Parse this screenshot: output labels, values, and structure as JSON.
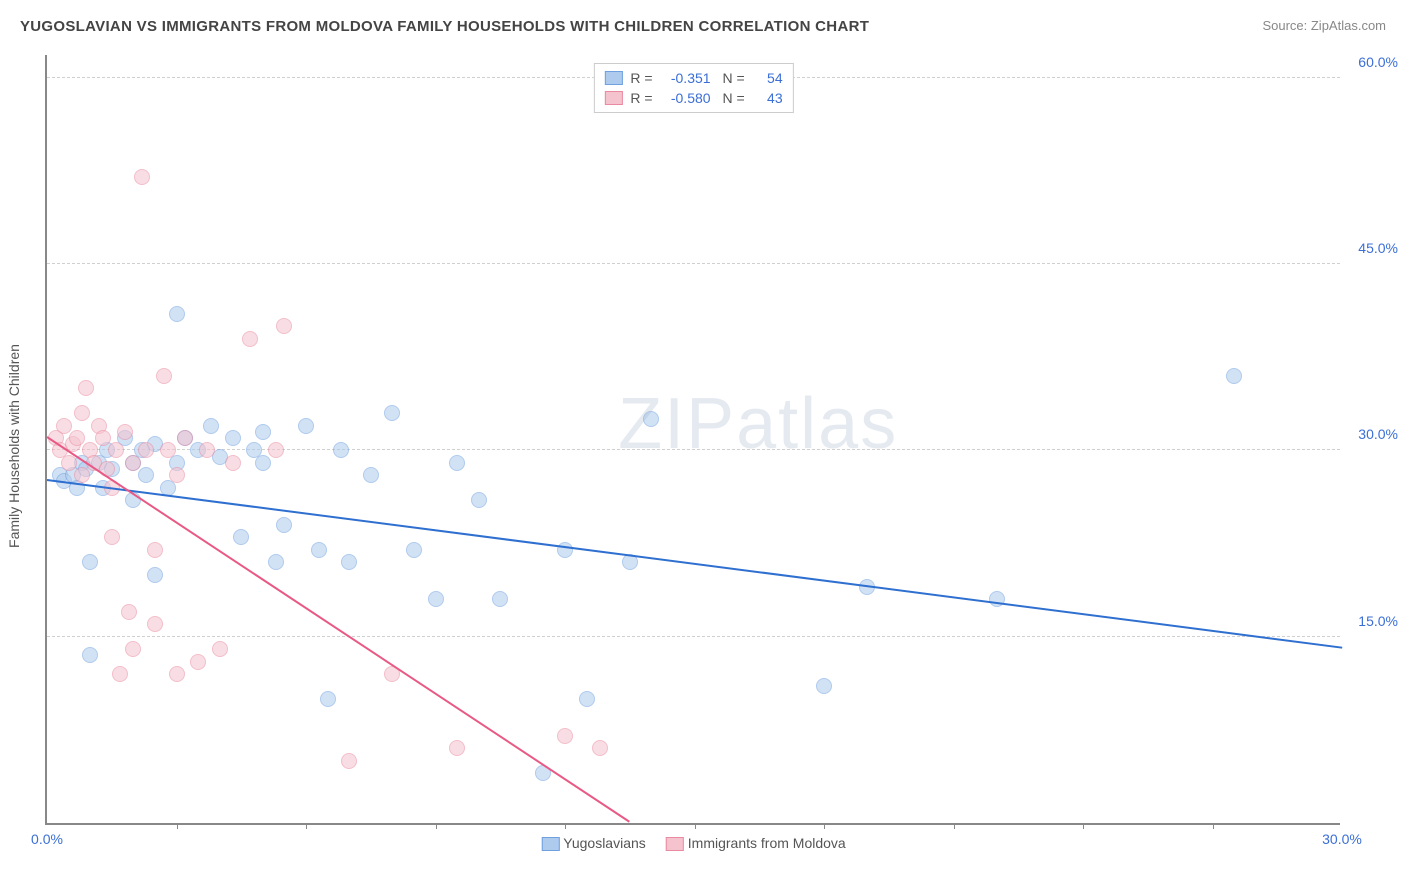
{
  "title": "YUGOSLAVIAN VS IMMIGRANTS FROM MOLDOVA FAMILY HOUSEHOLDS WITH CHILDREN CORRELATION CHART",
  "source": "Source: ZipAtlas.com",
  "watermark": "ZIPatlas",
  "ylabel": "Family Households with Children",
  "chart": {
    "type": "scatter",
    "xlim": [
      0,
      30
    ],
    "ylim": [
      0,
      62
    ],
    "xtick_labels": [
      "0.0%",
      "30.0%"
    ],
    "ytick_values": [
      15,
      30,
      45,
      60
    ],
    "ytick_labels": [
      "15.0%",
      "30.0%",
      "45.0%",
      "60.0%"
    ],
    "grid_color": "#d0d0d0",
    "axis_color": "#888888",
    "tick_color": "#3b6fd6",
    "background_color": "#ffffff",
    "marker_radius": 8,
    "marker_opacity": 0.55,
    "series": [
      {
        "name": "Yugoslavians",
        "fill_color": "#aecbee",
        "stroke_color": "#6fa0e0",
        "line_color": "#2e6fd0",
        "R": "-0.351",
        "N": "54",
        "trendline": {
          "x1": 0,
          "y1": 27.5,
          "x2": 30,
          "y2": 14.0
        },
        "points": [
          [
            0.3,
            28
          ],
          [
            0.4,
            27.5
          ],
          [
            0.6,
            28
          ],
          [
            0.7,
            27
          ],
          [
            0.8,
            29
          ],
          [
            0.9,
            28.5
          ],
          [
            1.0,
            13.5
          ],
          [
            1.0,
            21
          ],
          [
            1.2,
            29
          ],
          [
            1.3,
            27
          ],
          [
            1.4,
            30
          ],
          [
            1.5,
            28.5
          ],
          [
            1.8,
            31
          ],
          [
            2.0,
            29
          ],
          [
            2.0,
            26
          ],
          [
            2.2,
            30
          ],
          [
            2.3,
            28
          ],
          [
            2.5,
            20
          ],
          [
            2.5,
            30.5
          ],
          [
            2.8,
            27
          ],
          [
            3.0,
            29
          ],
          [
            3.0,
            41
          ],
          [
            3.2,
            31
          ],
          [
            3.5,
            30
          ],
          [
            3.8,
            32
          ],
          [
            4.0,
            29.5
          ],
          [
            4.3,
            31
          ],
          [
            4.5,
            23
          ],
          [
            4.8,
            30
          ],
          [
            5.0,
            29
          ],
          [
            5.0,
            31.5
          ],
          [
            5.3,
            21
          ],
          [
            5.5,
            24
          ],
          [
            6.0,
            32
          ],
          [
            6.3,
            22
          ],
          [
            6.5,
            10
          ],
          [
            6.8,
            30
          ],
          [
            7.0,
            21
          ],
          [
            7.5,
            28
          ],
          [
            8.0,
            33
          ],
          [
            8.5,
            22
          ],
          [
            9.0,
            18
          ],
          [
            9.5,
            29
          ],
          [
            10.0,
            26
          ],
          [
            10.5,
            18
          ],
          [
            11.5,
            4
          ],
          [
            12.0,
            22
          ],
          [
            12.5,
            10
          ],
          [
            13.5,
            21
          ],
          [
            14.0,
            32.5
          ],
          [
            18.0,
            11
          ],
          [
            19.0,
            19
          ],
          [
            22.0,
            18
          ],
          [
            27.5,
            36
          ]
        ]
      },
      {
        "name": "Immigrants from Moldova",
        "fill_color": "#f5c3ce",
        "stroke_color": "#e98aa0",
        "line_color": "#e85a85",
        "R": "-0.580",
        "N": "43",
        "trendline": {
          "x1": 0,
          "y1": 31.0,
          "x2": 13.5,
          "y2": 0
        },
        "points": [
          [
            0.2,
            31
          ],
          [
            0.3,
            30
          ],
          [
            0.4,
            32
          ],
          [
            0.5,
            29
          ],
          [
            0.6,
            30.5
          ],
          [
            0.7,
            31
          ],
          [
            0.8,
            28
          ],
          [
            0.8,
            33
          ],
          [
            0.9,
            35
          ],
          [
            1.0,
            30
          ],
          [
            1.1,
            29
          ],
          [
            1.2,
            32
          ],
          [
            1.3,
            31
          ],
          [
            1.4,
            28.5
          ],
          [
            1.5,
            27
          ],
          [
            1.5,
            23
          ],
          [
            1.6,
            30
          ],
          [
            1.7,
            12
          ],
          [
            1.8,
            31.5
          ],
          [
            1.9,
            17
          ],
          [
            2.0,
            29
          ],
          [
            2.0,
            14
          ],
          [
            2.2,
            52
          ],
          [
            2.3,
            30
          ],
          [
            2.5,
            16
          ],
          [
            2.5,
            22
          ],
          [
            2.7,
            36
          ],
          [
            2.8,
            30
          ],
          [
            3.0,
            12
          ],
          [
            3.0,
            28
          ],
          [
            3.2,
            31
          ],
          [
            3.5,
            13
          ],
          [
            3.7,
            30
          ],
          [
            4.0,
            14
          ],
          [
            4.3,
            29
          ],
          [
            4.7,
            39
          ],
          [
            5.3,
            30
          ],
          [
            5.5,
            40
          ],
          [
            7.0,
            5
          ],
          [
            8.0,
            12
          ],
          [
            9.5,
            6
          ],
          [
            12.0,
            7
          ],
          [
            12.8,
            6
          ]
        ]
      }
    ],
    "legend_top": {
      "rows": [
        {
          "swatch_fill": "#aecbee",
          "swatch_stroke": "#6fa0e0",
          "R": "-0.351",
          "N": "54"
        },
        {
          "swatch_fill": "#f5c3ce",
          "swatch_stroke": "#e98aa0",
          "R": "-0.580",
          "N": "43"
        }
      ]
    }
  }
}
